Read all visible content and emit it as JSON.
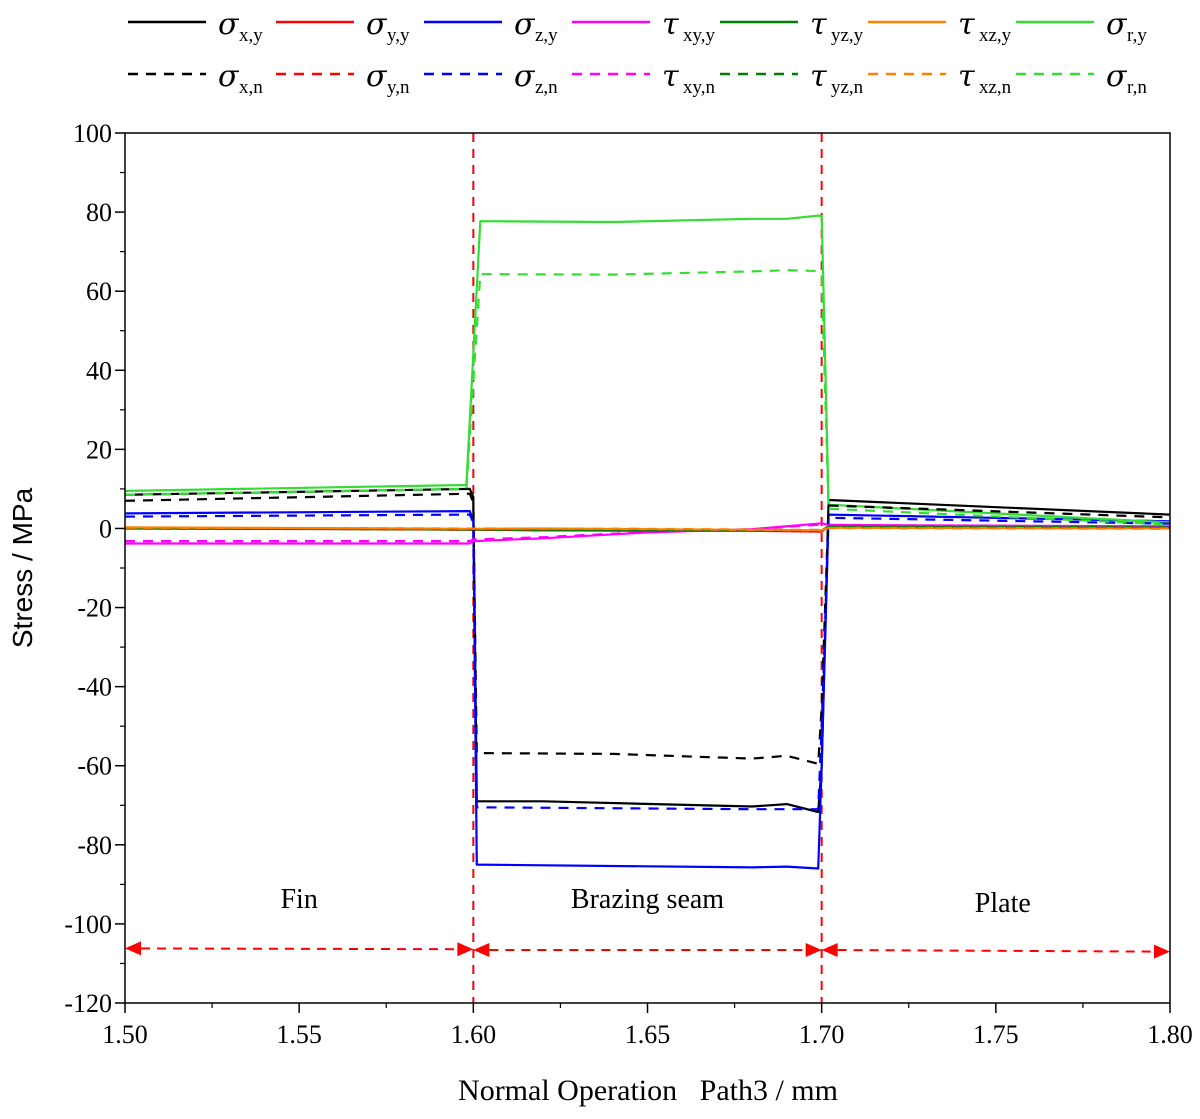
{
  "chart_data": {
    "type": "line",
    "title": "",
    "xlabel": "Normal Operation   Path3 / mm",
    "ylabel": "Stress / MPa",
    "xlim": [
      1.5,
      1.8
    ],
    "ylim": [
      -120,
      100
    ],
    "x_ticks": [
      "1.50",
      "1.55",
      "1.60",
      "1.65",
      "1.70",
      "1.75",
      "1.80"
    ],
    "y_ticks": [
      "-120",
      "-100",
      "-80",
      "-60",
      "-40",
      "-20",
      "0",
      "20",
      "40",
      "60",
      "80",
      "100"
    ],
    "grid": false,
    "legend_position": "top",
    "region_boundaries": [
      1.6,
      1.7
    ],
    "region_labels": [
      {
        "text": "Fin",
        "x": 1.55,
        "y": -96
      },
      {
        "text": "Brazing seam",
        "x": 1.65,
        "y": -96
      },
      {
        "text": "Plate",
        "x": 1.752,
        "y": -97
      }
    ],
    "region_arrows": [
      {
        "x1": 1.5,
        "x2": 1.6,
        "y1": -106.2,
        "y2": -106.4
      },
      {
        "x1": 1.6,
        "x2": 1.7,
        "y1": -106.6,
        "y2": -106.6
      },
      {
        "x1": 1.7,
        "x2": 1.8,
        "y1": -106.6,
        "y2": -107.0
      }
    ],
    "series": [
      {
        "symbol": "σ",
        "sub": "x,y",
        "color": "#000000",
        "dash": false,
        "points": [
          [
            1.5,
            8.5
          ],
          [
            1.599,
            10.0
          ],
          [
            1.6,
            8.0
          ],
          [
            1.601,
            -69.0
          ],
          [
            1.62,
            -69.0
          ],
          [
            1.68,
            -70.3
          ],
          [
            1.69,
            -69.7
          ],
          [
            1.699,
            -71.7
          ],
          [
            1.7,
            -60.0
          ],
          [
            1.702,
            7.2
          ],
          [
            1.8,
            3.5
          ]
        ]
      },
      {
        "symbol": "σ",
        "sub": "y,y",
        "color": "#ff0000",
        "dash": false,
        "points": [
          [
            1.5,
            0.2
          ],
          [
            1.6,
            -0.3
          ],
          [
            1.62,
            -0.5
          ],
          [
            1.68,
            -0.6
          ],
          [
            1.7,
            -0.8
          ],
          [
            1.702,
            0.6
          ],
          [
            1.8,
            0.5
          ]
        ]
      },
      {
        "symbol": "σ",
        "sub": "z,y",
        "color": "#0000ff",
        "dash": false,
        "points": [
          [
            1.5,
            3.8
          ],
          [
            1.599,
            4.4
          ],
          [
            1.6,
            2.0
          ],
          [
            1.601,
            -85.0
          ],
          [
            1.68,
            -85.7
          ],
          [
            1.69,
            -85.5
          ],
          [
            1.699,
            -86.0
          ],
          [
            1.7,
            -60.0
          ],
          [
            1.702,
            3.5
          ],
          [
            1.8,
            1.8
          ]
        ]
      },
      {
        "symbol": "τ",
        "sub": "xy,y",
        "color": "#ff00ff",
        "dash": false,
        "points": [
          [
            1.5,
            -3.8
          ],
          [
            1.599,
            -3.8
          ],
          [
            1.6,
            -3.2
          ],
          [
            1.62,
            -2.5
          ],
          [
            1.65,
            -1.0
          ],
          [
            1.68,
            -0.2
          ],
          [
            1.7,
            1.3
          ],
          [
            1.702,
            0.9
          ],
          [
            1.8,
            0.5
          ]
        ]
      },
      {
        "symbol": "τ",
        "sub": "yz,y",
        "color": "#007f00",
        "dash": false,
        "points": [
          [
            1.5,
            0.0
          ],
          [
            1.6,
            -0.3
          ],
          [
            1.65,
            -0.6
          ],
          [
            1.7,
            -0.5
          ],
          [
            1.702,
            0.5
          ],
          [
            1.8,
            0.3
          ]
        ]
      },
      {
        "symbol": "τ",
        "sub": "xz,y",
        "color": "#ff8000",
        "dash": false,
        "points": [
          [
            1.5,
            0.3
          ],
          [
            1.6,
            -0.1
          ],
          [
            1.62,
            0.0
          ],
          [
            1.65,
            -0.2
          ],
          [
            1.7,
            -0.5
          ],
          [
            1.702,
            0.2
          ],
          [
            1.8,
            0.0
          ]
        ]
      },
      {
        "symbol": "σ",
        "sub": "r,y",
        "color": "#33dd33",
        "dash": false,
        "points": [
          [
            1.5,
            9.5
          ],
          [
            1.598,
            11.0
          ],
          [
            1.602,
            77.7
          ],
          [
            1.64,
            77.5
          ],
          [
            1.68,
            78.3
          ],
          [
            1.69,
            78.3
          ],
          [
            1.699,
            79.1
          ],
          [
            1.7,
            79.0
          ],
          [
            1.702,
            6.0
          ],
          [
            1.8,
            1.5
          ]
        ]
      },
      {
        "symbol": "σ",
        "sub": "x,n",
        "color": "#000000",
        "dash": true,
        "points": [
          [
            1.5,
            7.0
          ],
          [
            1.599,
            8.8
          ],
          [
            1.6,
            6.5
          ],
          [
            1.601,
            -56.8
          ],
          [
            1.64,
            -57.0
          ],
          [
            1.68,
            -58.2
          ],
          [
            1.69,
            -57.5
          ],
          [
            1.699,
            -59.5
          ],
          [
            1.7,
            -45.0
          ],
          [
            1.702,
            5.8
          ],
          [
            1.8,
            2.8
          ]
        ]
      },
      {
        "symbol": "σ",
        "sub": "y,n",
        "color": "#ff0000",
        "dash": true,
        "points": [
          [
            1.5,
            0.1
          ],
          [
            1.6,
            -0.3
          ],
          [
            1.62,
            -0.4
          ],
          [
            1.68,
            -0.5
          ],
          [
            1.7,
            -0.6
          ],
          [
            1.702,
            0.5
          ],
          [
            1.8,
            0.4
          ]
        ]
      },
      {
        "symbol": "σ",
        "sub": "z,n",
        "color": "#0000ff",
        "dash": true,
        "points": [
          [
            1.5,
            3.0
          ],
          [
            1.599,
            3.5
          ],
          [
            1.6,
            1.5
          ],
          [
            1.601,
            -70.5
          ],
          [
            1.68,
            -71.0
          ],
          [
            1.699,
            -71.0
          ],
          [
            1.7,
            -50.0
          ],
          [
            1.702,
            2.7
          ],
          [
            1.8,
            1.2
          ]
        ]
      },
      {
        "symbol": "τ",
        "sub": "xy,n",
        "color": "#ff00ff",
        "dash": true,
        "points": [
          [
            1.5,
            -3.2
          ],
          [
            1.599,
            -3.2
          ],
          [
            1.6,
            -2.8
          ],
          [
            1.62,
            -2.2
          ],
          [
            1.65,
            -0.9
          ],
          [
            1.68,
            -0.2
          ],
          [
            1.7,
            1.0
          ],
          [
            1.702,
            0.8
          ],
          [
            1.8,
            0.4
          ]
        ]
      },
      {
        "symbol": "τ",
        "sub": "yz,n",
        "color": "#007f00",
        "dash": true,
        "points": [
          [
            1.5,
            0.0
          ],
          [
            1.6,
            -0.2
          ],
          [
            1.65,
            -0.5
          ],
          [
            1.7,
            -0.4
          ],
          [
            1.702,
            0.4
          ],
          [
            1.8,
            0.2
          ]
        ]
      },
      {
        "symbol": "τ",
        "sub": "xz,n",
        "color": "#ff8000",
        "dash": true,
        "points": [
          [
            1.5,
            0.2
          ],
          [
            1.6,
            0.0
          ],
          [
            1.65,
            -0.1
          ],
          [
            1.7,
            -0.4
          ],
          [
            1.702,
            0.1
          ],
          [
            1.8,
            -0.1
          ]
        ]
      },
      {
        "symbol": "σ",
        "sub": "r,n",
        "color": "#33dd33",
        "dash": true,
        "points": [
          [
            1.5,
            8.5
          ],
          [
            1.598,
            10.0
          ],
          [
            1.602,
            64.3
          ],
          [
            1.64,
            64.2
          ],
          [
            1.68,
            65.0
          ],
          [
            1.69,
            65.3
          ],
          [
            1.699,
            65.1
          ],
          [
            1.7,
            64.0
          ],
          [
            1.702,
            5.0
          ],
          [
            1.8,
            1.0
          ]
        ]
      }
    ]
  }
}
